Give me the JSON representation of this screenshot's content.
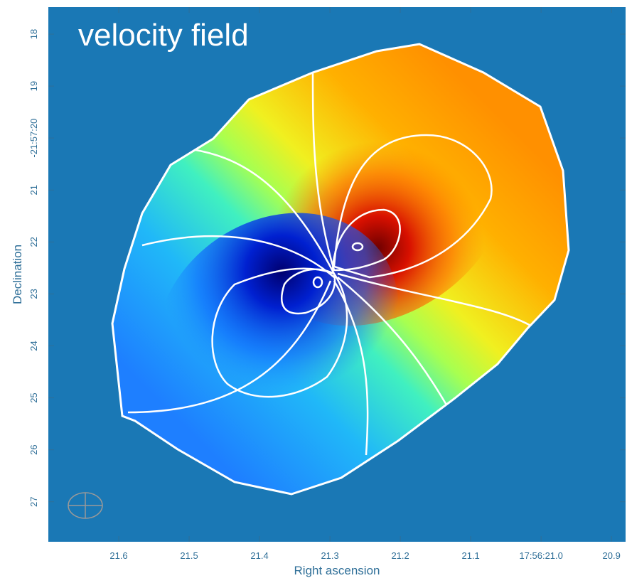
{
  "chart_data": {
    "type": "image",
    "title": "velocity field",
    "xlabel": "Right ascension",
    "ylabel": "Declination",
    "xlim": [
      21.7,
      20.88
    ],
    "ylim": [
      27.77,
      17.48
    ],
    "xticks": [
      21.6,
      21.5,
      21.4,
      21.3,
      21.2,
      21.1,
      {
        "value": 21.0,
        "label": "17:56:21.0"
      },
      20.9
    ],
    "yticks": [
      18,
      19,
      {
        "value": 20,
        "label": "-21:57:20"
      },
      21,
      22,
      23,
      24,
      25,
      26,
      27
    ]
  }
}
